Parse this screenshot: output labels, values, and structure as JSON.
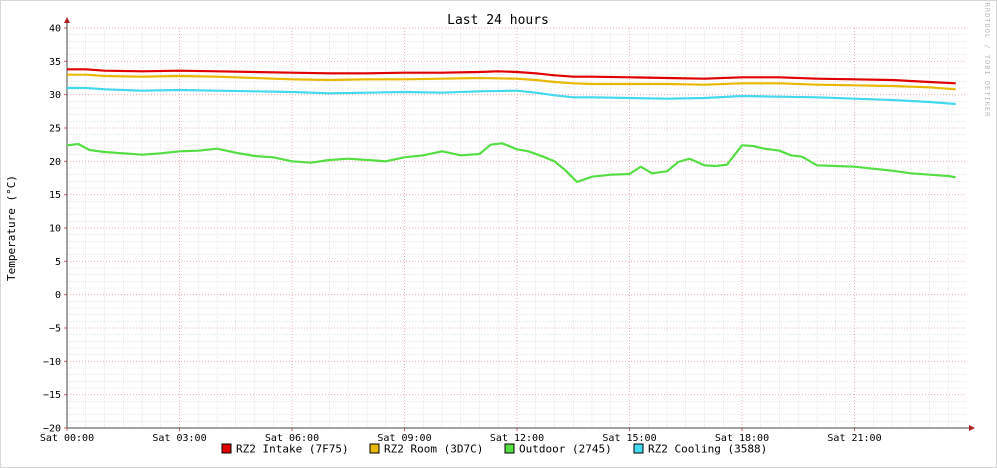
{
  "chart_data": {
    "type": "line",
    "title": "Last 24 hours",
    "ylabel": "Temperature (°C)",
    "xlabel": "",
    "watermark": "RRDTOOL / TOBI OETIKER",
    "ylim": [
      -20,
      40
    ],
    "yticks": [
      -20,
      -15,
      -10,
      -5,
      0,
      5,
      10,
      15,
      20,
      25,
      30,
      35,
      40
    ],
    "xlim": [
      0,
      24
    ],
    "x_unit": "hours since Sat 00:00",
    "xticks": [
      {
        "x": 0,
        "label": "Sat 00:00"
      },
      {
        "x": 3,
        "label": "Sat 03:00"
      },
      {
        "x": 6,
        "label": "Sat 06:00"
      },
      {
        "x": 9,
        "label": "Sat 09:00"
      },
      {
        "x": 12,
        "label": "Sat 12:00"
      },
      {
        "x": 15,
        "label": "Sat 15:00"
      },
      {
        "x": 18,
        "label": "Sat 18:00"
      },
      {
        "x": 21,
        "label": "Sat 21:00"
      }
    ],
    "grid": true,
    "legend_position": "bottom",
    "series": [
      {
        "name": "RZ2 Intake (7F75)",
        "color": "#e00000",
        "x": [
          0,
          0.5,
          1,
          2,
          3,
          4,
          5,
          6,
          7,
          8,
          9,
          10,
          11,
          11.5,
          12,
          12.5,
          13,
          13.5,
          14,
          15,
          16,
          17,
          18,
          19,
          20,
          21,
          22,
          23,
          23.7
        ],
        "y": [
          33.8,
          33.8,
          33.6,
          33.5,
          33.6,
          33.5,
          33.4,
          33.3,
          33.2,
          33.2,
          33.3,
          33.3,
          33.4,
          33.5,
          33.4,
          33.2,
          32.9,
          32.7,
          32.7,
          32.6,
          32.5,
          32.4,
          32.6,
          32.6,
          32.4,
          32.3,
          32.2,
          31.9,
          31.7
        ]
      },
      {
        "name": "RZ2 Room (3D7C)",
        "color": "#e8b800",
        "x": [
          0,
          0.5,
          1,
          2,
          3,
          4,
          5,
          6,
          7,
          8,
          9,
          10,
          11,
          12,
          12.5,
          13,
          13.5,
          14,
          15,
          16,
          17,
          18,
          19,
          20,
          21,
          22,
          23,
          23.7
        ],
        "y": [
          33.0,
          33.0,
          32.8,
          32.7,
          32.8,
          32.7,
          32.5,
          32.3,
          32.2,
          32.3,
          32.3,
          32.4,
          32.5,
          32.4,
          32.2,
          31.9,
          31.7,
          31.6,
          31.6,
          31.6,
          31.5,
          31.7,
          31.7,
          31.5,
          31.4,
          31.3,
          31.1,
          30.8
        ]
      },
      {
        "name": "Outdoor (2745)",
        "color": "#55dd44",
        "x": [
          0,
          0.3,
          0.6,
          1,
          1.5,
          2,
          2.5,
          3,
          3.5,
          4,
          4.5,
          5,
          5.5,
          6,
          6.5,
          7,
          7.5,
          8,
          8.5,
          9,
          9.5,
          10,
          10.5,
          11,
          11.3,
          11.6,
          12,
          12.3,
          12.7,
          13,
          13.3,
          13.6,
          14,
          14.5,
          15,
          15.3,
          15.6,
          16,
          16.3,
          16.6,
          17,
          17.3,
          17.6,
          18,
          18.3,
          18.6,
          19,
          19.3,
          19.6,
          20,
          20.5,
          21,
          21.5,
          22,
          22.5,
          23,
          23.5,
          23.7
        ],
        "y": [
          22.4,
          22.6,
          21.7,
          21.4,
          21.2,
          21.0,
          21.2,
          21.5,
          21.6,
          21.9,
          21.3,
          20.8,
          20.6,
          20.0,
          19.8,
          20.2,
          20.4,
          20.2,
          20.0,
          20.6,
          20.9,
          21.5,
          20.9,
          21.1,
          22.5,
          22.7,
          21.8,
          21.5,
          20.7,
          20.0,
          18.6,
          16.9,
          17.7,
          18.0,
          18.1,
          19.2,
          18.2,
          18.5,
          19.9,
          20.4,
          19.4,
          19.3,
          19.5,
          22.4,
          22.3,
          21.9,
          21.6,
          20.9,
          20.7,
          19.4,
          19.3,
          19.2,
          18.9,
          18.6,
          18.2,
          18.0,
          17.8,
          17.6
        ]
      },
      {
        "name": "RZ2 Cooling (3588)",
        "color": "#44d8ee",
        "x": [
          0,
          0.5,
          1,
          2,
          3,
          4,
          5,
          6,
          7,
          8,
          9,
          10,
          11,
          12,
          12.5,
          13,
          13.5,
          14,
          15,
          16,
          17,
          18,
          19,
          20,
          21,
          22,
          23,
          23.7
        ],
        "y": [
          31.0,
          31.0,
          30.8,
          30.6,
          30.7,
          30.6,
          30.5,
          30.4,
          30.2,
          30.3,
          30.4,
          30.3,
          30.5,
          30.6,
          30.3,
          29.9,
          29.6,
          29.6,
          29.5,
          29.4,
          29.5,
          29.8,
          29.7,
          29.6,
          29.4,
          29.2,
          28.9,
          28.6
        ]
      }
    ]
  }
}
